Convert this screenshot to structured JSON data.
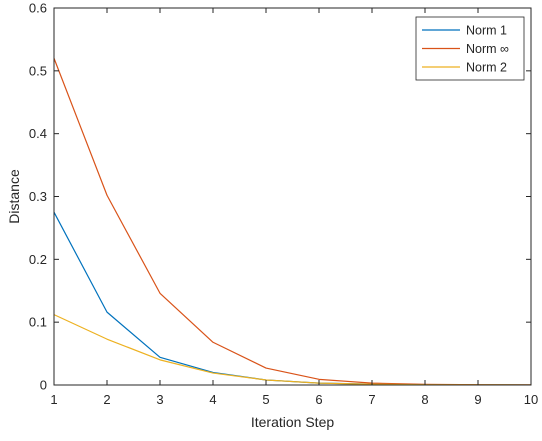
{
  "chart_data": {
    "type": "line",
    "title": "",
    "xlabel": "Iteration Step",
    "ylabel": "Distance",
    "xlim": [
      1,
      10
    ],
    "ylim": [
      0,
      0.6
    ],
    "x_ticks": [
      "1",
      "2",
      "3",
      "4",
      "5",
      "6",
      "7",
      "8",
      "9",
      "10"
    ],
    "y_ticks": [
      "0",
      "0.1",
      "0.2",
      "0.3",
      "0.4",
      "0.5",
      "0.6"
    ],
    "grid": false,
    "legend_position": "top-right",
    "x": [
      1,
      2,
      3,
      4,
      5,
      6,
      7,
      8,
      9,
      10
    ],
    "series": [
      {
        "name": "Norm 1",
        "color": "#0072BD",
        "values": [
          0.275,
          0.116,
          0.044,
          0.02,
          0.008,
          0.003,
          0.0015,
          0.0006,
          0.0003,
          0.0001
        ]
      },
      {
        "name": "Norm ∞",
        "color": "#D95319",
        "values": [
          0.52,
          0.302,
          0.146,
          0.068,
          0.027,
          0.009,
          0.003,
          0.001,
          0.0004,
          0.0002
        ]
      },
      {
        "name": "Norm 2",
        "color": "#EDB120",
        "values": [
          0.112,
          0.073,
          0.04,
          0.019,
          0.008,
          0.003,
          0.0012,
          0.0005,
          0.0002,
          0.0001
        ]
      }
    ]
  }
}
